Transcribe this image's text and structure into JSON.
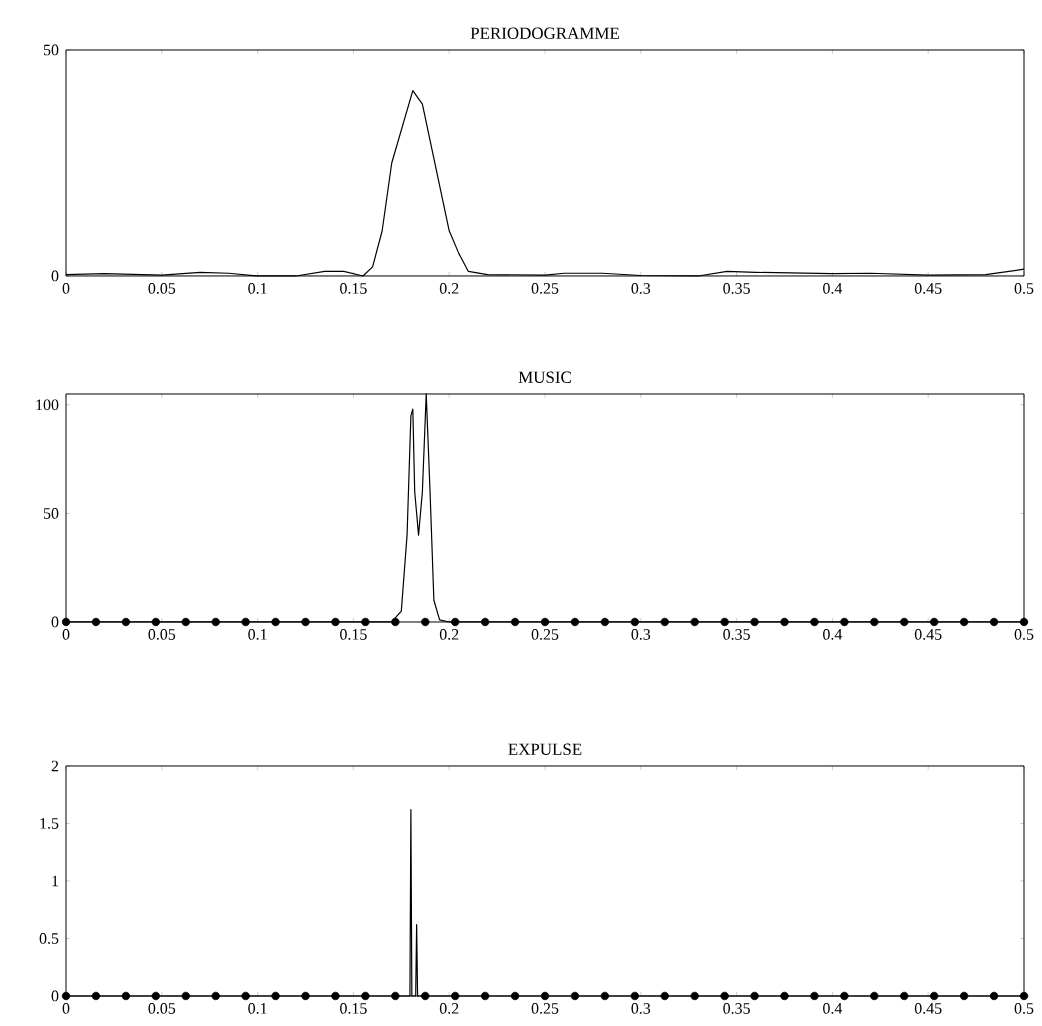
{
  "chart_data": [
    {
      "type": "line",
      "title": "PERIODOGRAMME",
      "xlim": [
        0,
        0.5
      ],
      "ylim": [
        0,
        50
      ],
      "xticks": [
        0,
        0.05,
        0.1,
        0.15,
        0.2,
        0.25,
        0.3,
        0.35,
        0.4,
        0.45,
        0.5
      ],
      "yticks": [
        0,
        50
      ],
      "series": [
        {
          "color": "#000000",
          "x": [
            0,
            0.02,
            0.05,
            0.07,
            0.085,
            0.1,
            0.12,
            0.135,
            0.145,
            0.155,
            0.16,
            0.165,
            0.17,
            0.181,
            0.186,
            0.19,
            0.2,
            0.205,
            0.21,
            0.22,
            0.25,
            0.26,
            0.28,
            0.3,
            0.33,
            0.345,
            0.36,
            0.4,
            0.42,
            0.45,
            0.48,
            0.5
          ],
          "values": [
            0.3,
            0.5,
            0.2,
            0.8,
            0.6,
            0,
            0,
            1,
            1,
            0,
            2,
            10,
            25,
            41,
            38,
            30,
            10,
            5,
            1,
            0.3,
            0.2,
            0.6,
            0.6,
            0.1,
            0,
            1,
            0.8,
            0.5,
            0.6,
            0.2,
            0.3,
            1.5
          ]
        }
      ]
    },
    {
      "type": "line",
      "title": "MUSIC",
      "xlim": [
        0,
        0.5
      ],
      "ylim": [
        0,
        105
      ],
      "xticks": [
        0,
        0.05,
        0.1,
        0.15,
        0.2,
        0.25,
        0.3,
        0.35,
        0.4,
        0.45,
        0.5
      ],
      "yticks": [
        0,
        50,
        100
      ],
      "series": [
        {
          "color": "#000000",
          "x": [
            0,
            0.17,
            0.175,
            0.178,
            0.18,
            0.181,
            0.182,
            0.184,
            0.186,
            0.188,
            0.19,
            0.192,
            0.195,
            0.2,
            0.5
          ],
          "values": [
            0,
            0,
            5,
            40,
            95,
            98,
            60,
            40,
            60,
            105,
            60,
            10,
            1,
            0,
            0
          ]
        },
        {
          "type": "scatter",
          "color": "#000000",
          "x": [
            0,
            0.015625,
            0.03125,
            0.046875,
            0.0625,
            0.078125,
            0.09375,
            0.109375,
            0.125,
            0.140625,
            0.15625,
            0.171875,
            0.1875,
            0.203125,
            0.21875,
            0.234375,
            0.25,
            0.265625,
            0.28125,
            0.296875,
            0.3125,
            0.328125,
            0.34375,
            0.359375,
            0.375,
            0.390625,
            0.40625,
            0.421875,
            0.4375,
            0.453125,
            0.46875,
            0.484375,
            0.5
          ],
          "values": [
            0,
            0,
            0,
            0,
            0,
            0,
            0,
            0,
            0,
            0,
            0,
            0,
            0,
            0,
            0,
            0,
            0,
            0,
            0,
            0,
            0,
            0,
            0,
            0,
            0,
            0,
            0,
            0,
            0,
            0,
            0,
            0,
            0
          ]
        }
      ]
    },
    {
      "type": "line",
      "title": "EXPULSE",
      "xlim": [
        0,
        0.5
      ],
      "ylim": [
        0,
        2
      ],
      "xticks": [
        0,
        0.05,
        0.1,
        0.15,
        0.2,
        0.25,
        0.3,
        0.35,
        0.4,
        0.45,
        0.5
      ],
      "yticks": [
        0,
        0.5,
        1,
        1.5,
        2
      ],
      "series": [
        {
          "color": "#000000",
          "x": [
            0,
            0.1795,
            0.18,
            0.1805,
            0.1825,
            0.183,
            0.1835,
            0.5
          ],
          "values": [
            0,
            0,
            1.62,
            0,
            0,
            0.62,
            0,
            0
          ]
        },
        {
          "type": "scatter",
          "color": "#000000",
          "x": [
            0,
            0.015625,
            0.03125,
            0.046875,
            0.0625,
            0.078125,
            0.09375,
            0.109375,
            0.125,
            0.140625,
            0.15625,
            0.171875,
            0.1875,
            0.203125,
            0.21875,
            0.234375,
            0.25,
            0.265625,
            0.28125,
            0.296875,
            0.3125,
            0.328125,
            0.34375,
            0.359375,
            0.375,
            0.390625,
            0.40625,
            0.421875,
            0.4375,
            0.453125,
            0.46875,
            0.484375,
            0.5
          ],
          "values": [
            0,
            0,
            0,
            0,
            0,
            0,
            0,
            0,
            0,
            0,
            0,
            0,
            0,
            0,
            0,
            0,
            0,
            0,
            0,
            0,
            0,
            0,
            0,
            0,
            0,
            0,
            0,
            0,
            0,
            0,
            0,
            0,
            0
          ]
        }
      ]
    }
  ]
}
